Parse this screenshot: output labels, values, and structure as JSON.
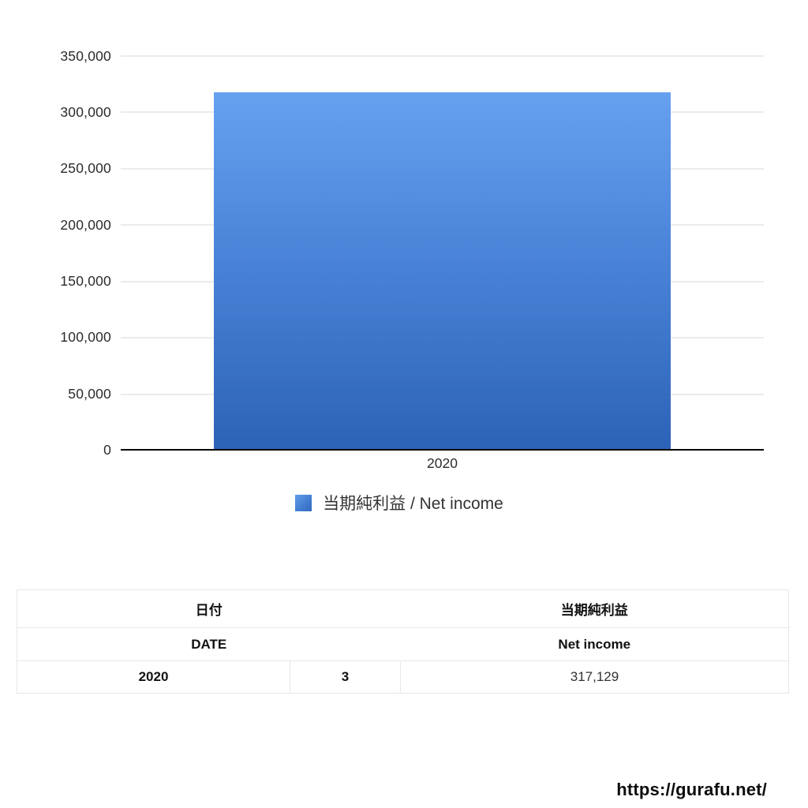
{
  "chart_data": {
    "type": "bar",
    "categories": [
      "2020"
    ],
    "series": [
      {
        "name": "当期純利益 / Net income",
        "values": [
          317129
        ]
      }
    ],
    "title": "",
    "xlabel": "",
    "ylabel": "",
    "ylim": [
      0,
      350000
    ],
    "grid": true,
    "legend_position": "bottom",
    "yticks": [
      "350,000",
      "300,000",
      "250,000",
      "200,000",
      "150,000",
      "100,000",
      "50,000",
      "0"
    ],
    "bar_gradient_top": "#66a1f0",
    "bar_gradient_bottom": "#2d63b7",
    "gridline_color": "#ebebeb",
    "axis_color": "#000000"
  },
  "chart": {
    "x_tick_label": "2020"
  },
  "legend": {
    "label": "当期純利益 / Net income",
    "swatch_color": "#3b76d0"
  },
  "table": {
    "header_jp": {
      "date": "日付",
      "value": "当期純利益"
    },
    "header_en": {
      "date": "DATE",
      "value": "Net income"
    },
    "row": {
      "year": "2020",
      "month": "3",
      "value": "317,129"
    }
  },
  "footer": {
    "url": "https://gurafu.net/"
  }
}
